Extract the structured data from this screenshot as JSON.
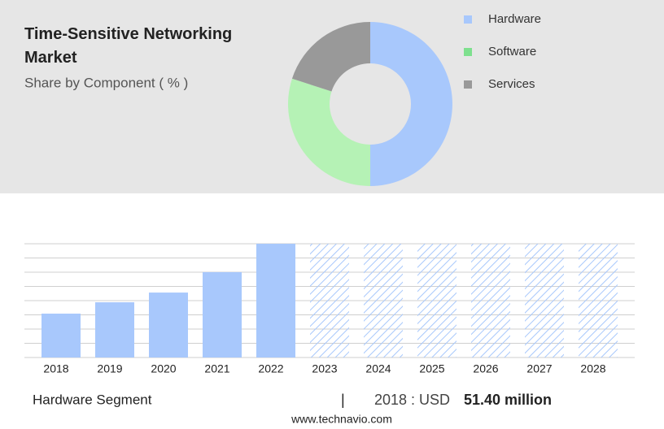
{
  "chart_data": [
    {
      "type": "donut",
      "title": "Time-Sensitive Networking Market",
      "subtitle": "Share by Component ( % )",
      "categories": [
        "Hardware",
        "Software",
        "Services"
      ],
      "values": [
        50,
        30,
        20
      ],
      "colors": [
        "#a8c8fc",
        "#b5f2b5",
        "#999999"
      ],
      "legend_colors": [
        "#a8c8fc",
        "#7ee08e",
        "#999999"
      ]
    },
    {
      "type": "bar",
      "categories": [
        "2018",
        "2019",
        "2020",
        "2021",
        "2022",
        "2023",
        "2024",
        "2025",
        "2026",
        "2027",
        "2028"
      ],
      "values": [
        51.4,
        64.7,
        76.1,
        100,
        133.3,
        null,
        null,
        null,
        null,
        null,
        null
      ],
      "color": "#a8c8fc",
      "ylim": [
        0,
        133.3
      ],
      "grid": true
    }
  ],
  "footer": {
    "segment": "Hardware Segment",
    "separator": "|",
    "period": "2018 : USD",
    "highlight": "51.40 million",
    "source": "www.technavio.com"
  }
}
